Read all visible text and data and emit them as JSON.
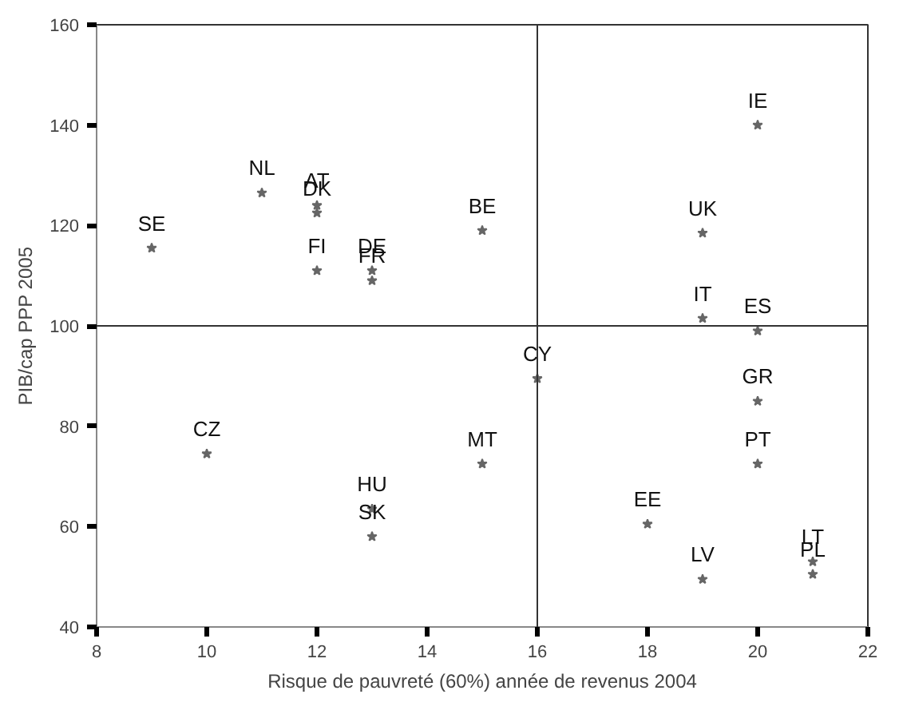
{
  "chart_data": {
    "type": "scatter",
    "xlabel": "Risque de pauvreté (60%) année de revenus 2004",
    "ylabel": "PIB/cap PPP 2005",
    "x": [
      9,
      11,
      12,
      12,
      12,
      13,
      13,
      15,
      20,
      19,
      19,
      20,
      16,
      20,
      20,
      15,
      10,
      13,
      13,
      18,
      19,
      21,
      21
    ],
    "series": [
      {
        "color": "#666666",
        "values": [
          115.5,
          126.5,
          124,
          122.5,
          111,
          111,
          109,
          119,
          140,
          118.5,
          101.5,
          99,
          89.5,
          85,
          72.5,
          72.5,
          74.5,
          63.5,
          58,
          60.5,
          49.5,
          53,
          50.5
        ]
      }
    ],
    "annotations": [
      {
        "text": "SE",
        "x": 9,
        "y": 115.5
      },
      {
        "text": "NL",
        "x": 11,
        "y": 126.5
      },
      {
        "text": "AT",
        "x": 12,
        "y": 124
      },
      {
        "text": "DK",
        "x": 12,
        "y": 122.5
      },
      {
        "text": "FI",
        "x": 12,
        "y": 111
      },
      {
        "text": "DE",
        "x": 13,
        "y": 111
      },
      {
        "text": "FR",
        "x": 13,
        "y": 109
      },
      {
        "text": "BE",
        "x": 15,
        "y": 119
      },
      {
        "text": "IE",
        "x": 20,
        "y": 140
      },
      {
        "text": "UK",
        "x": 19,
        "y": 118.5
      },
      {
        "text": "IT",
        "x": 19,
        "y": 101.5
      },
      {
        "text": "ES",
        "x": 20,
        "y": 99
      },
      {
        "text": "CY",
        "x": 16,
        "y": 89.5
      },
      {
        "text": "GR",
        "x": 20,
        "y": 85
      },
      {
        "text": "PT",
        "x": 20,
        "y": 72.5
      },
      {
        "text": "MT",
        "x": 15,
        "y": 72.5
      },
      {
        "text": "CZ",
        "x": 10,
        "y": 74.5
      },
      {
        "text": "HU",
        "x": 13,
        "y": 63.5
      },
      {
        "text": "SK",
        "x": 13,
        "y": 58
      },
      {
        "text": "EE",
        "x": 18,
        "y": 60.5
      },
      {
        "text": "LV",
        "x": 19,
        "y": 49.5
      },
      {
        "text": "LT",
        "x": 21,
        "y": 53
      },
      {
        "text": "PL",
        "x": 21,
        "y": 50.5
      }
    ],
    "xlim": [
      8,
      22
    ],
    "xticks": [
      8,
      10,
      12,
      14,
      16,
      18,
      20,
      22
    ],
    "ylim": [
      40,
      160
    ],
    "yticks": [
      40,
      60,
      80,
      100,
      120,
      140,
      160
    ],
    "ref_lines": [
      {
        "axis": "x",
        "value": 16
      },
      {
        "axis": "y",
        "value": 100
      }
    ],
    "grid": false,
    "marker": "star"
  }
}
